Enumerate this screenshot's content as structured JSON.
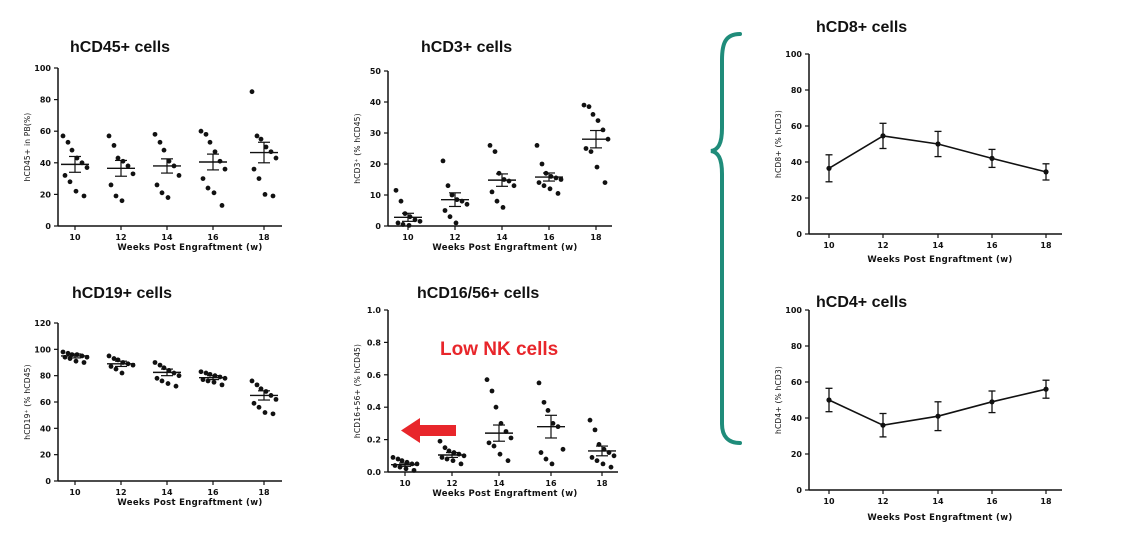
{
  "annotation": {
    "text": "Low NK cells",
    "color": "#e8262b"
  },
  "colors": {
    "brace": "#1f8c7a",
    "arrow": "#e8262b",
    "ink": "#111111"
  },
  "chart_data": [
    {
      "id": "hcd45",
      "type": "scatter",
      "title": "hCD45+ cells",
      "xlabel": "Weeks Post Engraftment (w)",
      "ylabel": "hCD45+ in PB(%)",
      "categories": [
        "10",
        "12",
        "14",
        "16",
        "18"
      ],
      "ylim": [
        0,
        100
      ],
      "yticks": [
        0,
        20,
        40,
        60,
        80,
        100
      ],
      "points": [
        [
          57,
          53,
          48,
          43,
          40,
          37,
          32,
          28,
          22,
          19
        ],
        [
          57,
          51,
          43,
          41,
          38,
          33,
          26,
          19,
          16
        ],
        [
          58,
          53,
          48,
          41,
          38,
          32,
          26,
          21,
          18
        ],
        [
          60,
          58,
          53,
          47,
          41,
          36,
          30,
          24,
          21,
          13
        ],
        [
          85,
          57,
          55,
          50,
          47,
          43,
          36,
          30,
          20,
          19
        ]
      ],
      "mean": [
        39,
        36.5,
        38,
        40.5,
        46.5
      ],
      "sem": [
        5,
        5,
        4.5,
        5,
        6.5
      ]
    },
    {
      "id": "hcd3",
      "type": "scatter",
      "title": "hCD3+ cells",
      "xlabel": "Weeks Post Engraftment (w)",
      "ylabel": "hCD3⁺ (% hCD45)",
      "categories": [
        "10",
        "12",
        "14",
        "16",
        "18"
      ],
      "ylim": [
        0,
        50
      ],
      "yticks": [
        0,
        10,
        20,
        30,
        40,
        50
      ],
      "points": [
        [
          11.5,
          8,
          4,
          3,
          2,
          1.5,
          1,
          0.5,
          0.2
        ],
        [
          21,
          13,
          10,
          8.5,
          8,
          7,
          5,
          3,
          1
        ],
        [
          26,
          24,
          17,
          15,
          14.5,
          13,
          11,
          8,
          6
        ],
        [
          26,
          20,
          17,
          16,
          15.5,
          15,
          14,
          13,
          12,
          10.5
        ],
        [
          39,
          38.5,
          36,
          34,
          31,
          28,
          25,
          24,
          19,
          14
        ]
      ],
      "mean": [
        2.8,
        8.5,
        14.8,
        15.8,
        28
      ],
      "sem": [
        1.3,
        2.2,
        2.0,
        1.3,
        2.8
      ]
    },
    {
      "id": "hcd19",
      "type": "scatter",
      "title": "hCD19+ cells",
      "xlabel": "Weeks Post Engraftment (w)",
      "ylabel": "hCD19⁺ (% hCD45)",
      "categories": [
        "10",
        "12",
        "14",
        "16",
        "18"
      ],
      "ylim": [
        0,
        120
      ],
      "yticks": [
        0,
        20,
        40,
        60,
        80,
        100,
        120
      ],
      "points": [
        [
          98,
          97,
          96,
          96,
          95,
          94,
          94,
          93,
          91,
          90
        ],
        [
          95,
          93,
          92,
          90,
          89,
          88,
          87,
          85,
          82
        ],
        [
          90,
          88,
          86,
          84,
          82,
          80,
          78,
          76,
          74,
          72
        ],
        [
          83,
          82,
          81,
          80,
          79,
          78,
          77,
          76,
          75,
          73
        ],
        [
          76,
          73,
          70,
          68,
          65,
          62,
          59,
          56,
          52,
          51
        ]
      ],
      "mean": [
        95,
        89,
        82.5,
        78.5,
        65
      ],
      "sem": [
        1.5,
        2.0,
        2.5,
        1.5,
        3.5
      ]
    },
    {
      "id": "hcd16",
      "type": "scatter",
      "title": "hCD16/56+ cells",
      "xlabel": "Weeks Post Engraftment (w)",
      "ylabel": "hCD16+56+ (% hCD45)",
      "categories": [
        "10",
        "12",
        "14",
        "16",
        "18"
      ],
      "ylim": [
        0,
        1.0
      ],
      "yticks": [
        "0.0",
        "0.2",
        "0.4",
        "0.6",
        "0.8",
        "1.0"
      ],
      "points": [
        [
          0.09,
          0.08,
          0.07,
          0.06,
          0.05,
          0.05,
          0.04,
          0.03,
          0.02,
          0.01
        ],
        [
          0.19,
          0.15,
          0.13,
          0.12,
          0.11,
          0.1,
          0.09,
          0.08,
          0.07,
          0.05
        ],
        [
          0.57,
          0.5,
          0.4,
          0.3,
          0.25,
          0.21,
          0.18,
          0.16,
          0.11,
          0.07
        ],
        [
          0.55,
          0.43,
          0.38,
          0.3,
          0.28,
          0.14,
          0.12,
          0.08,
          0.05
        ],
        [
          0.32,
          0.26,
          0.17,
          0.14,
          0.12,
          0.1,
          0.09,
          0.07,
          0.05,
          0.03
        ]
      ],
      "mean": [
        0.045,
        0.105,
        0.24,
        0.28,
        0.13
      ],
      "sem": [
        0.01,
        0.015,
        0.05,
        0.07,
        0.03
      ]
    },
    {
      "id": "hcd8",
      "type": "line",
      "title": "hCD8+ cells",
      "xlabel": "Weeks Post Engraftment (w)",
      "ylabel": "hCD8+ (% hCD3)",
      "categories": [
        "10",
        "12",
        "14",
        "16",
        "18"
      ],
      "ylim": [
        0,
        100
      ],
      "yticks": [
        0,
        20,
        40,
        60,
        80,
        100
      ],
      "mean": [
        36.5,
        54.5,
        50,
        42,
        34.5
      ],
      "sem": [
        7.5,
        7,
        7,
        5,
        4.5
      ]
    },
    {
      "id": "hcd4",
      "type": "line",
      "title": "hCD4+ cells",
      "xlabel": "Weeks Post Engraftment (w)",
      "ylabel": "hCD4+ (% hCD3)",
      "categories": [
        "10",
        "12",
        "14",
        "16",
        "18"
      ],
      "ylim": [
        0,
        100
      ],
      "yticks": [
        0,
        20,
        40,
        60,
        80,
        100
      ],
      "mean": [
        50,
        36,
        41,
        49,
        56
      ],
      "sem": [
        6.5,
        6.5,
        8,
        6,
        5
      ]
    }
  ]
}
